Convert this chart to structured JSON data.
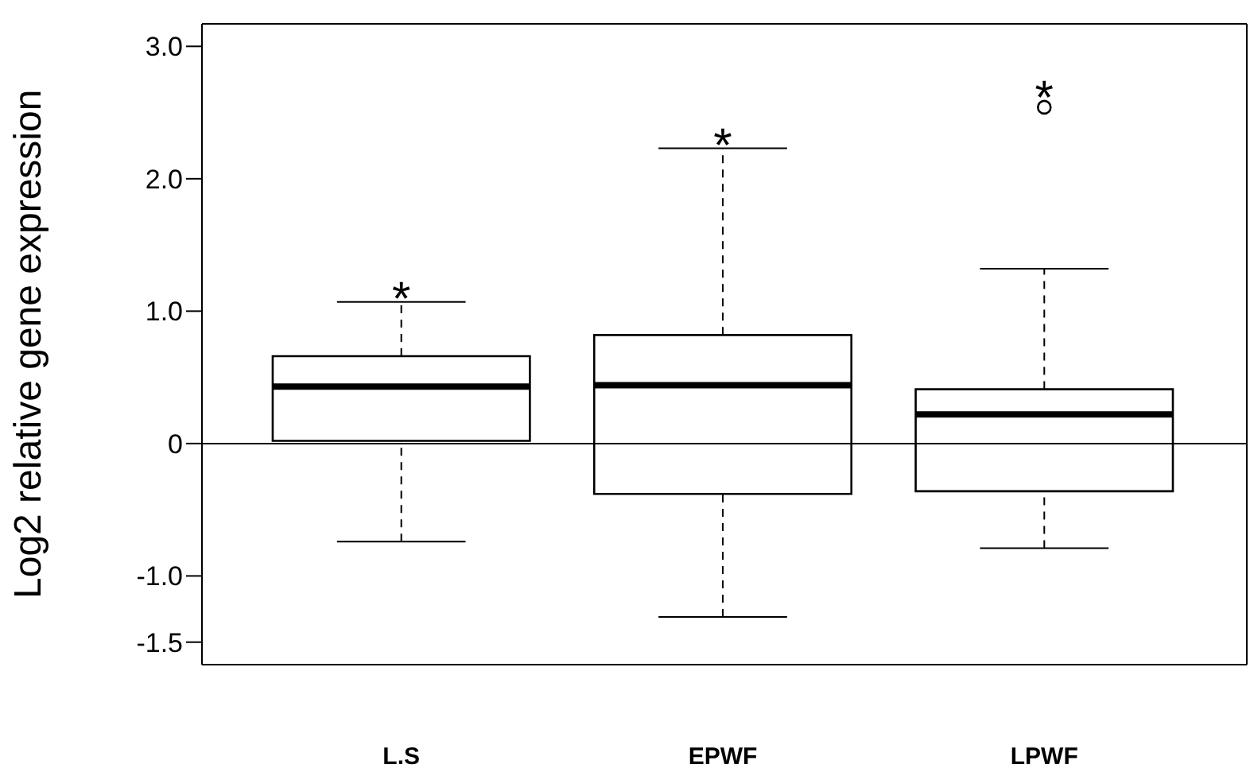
{
  "chart_data": {
    "type": "box",
    "ylabel": "Log2 relative gene expression",
    "categories": [
      "L.S",
      "EPWF",
      "LPWF"
    ],
    "boxes": [
      {
        "low": -0.74,
        "q1": 0.02,
        "median": 0.43,
        "q3": 0.66,
        "high": 1.07
      },
      {
        "low": -1.31,
        "q1": -0.38,
        "median": 0.44,
        "q3": 0.82,
        "high": 2.23
      },
      {
        "low": -0.79,
        "q1": -0.36,
        "median": 0.22,
        "q3": 0.41,
        "high": 1.32,
        "outliers": [
          2.54
        ]
      }
    ],
    "ylim": [
      -1.67,
      3.17
    ],
    "yticks": [
      {
        "value": 3,
        "label": "3.0"
      },
      {
        "value": 2,
        "label": "2.0"
      },
      {
        "value": 1,
        "label": "1.0"
      },
      0,
      {
        "value": -1,
        "label": "-1.0"
      },
      {
        "value": -1.5,
        "label": "-1.5"
      }
    ],
    "ref_lines": [
      {
        "axis": "y",
        "value": 0,
        "color": "#000000"
      }
    ],
    "annotations": [
      "*",
      "*",
      "*"
    ],
    "grid": false,
    "legend": false
  }
}
